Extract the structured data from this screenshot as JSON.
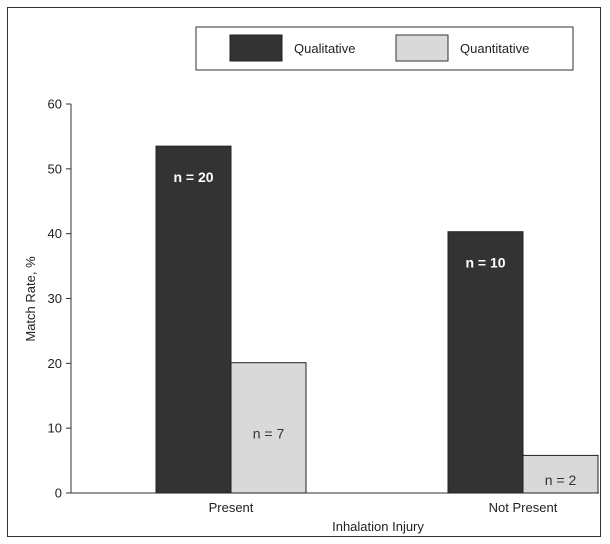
{
  "chart_data": {
    "type": "bar",
    "categories": [
      "Present",
      "Not Present"
    ],
    "series": [
      {
        "name": "Qualitative",
        "values": [
          53.5,
          40.3
        ],
        "labels": [
          "n = 20",
          "n = 10"
        ],
        "color": "#333333",
        "label_color": "#ffffff"
      },
      {
        "name": "Quantitative",
        "values": [
          20.1,
          5.8
        ],
        "labels": [
          "n = 7",
          "n = 2"
        ],
        "color": "#d9d9d9",
        "label_color": "#333333"
      }
    ],
    "xlabel": "Inhalation Injury",
    "ylabel": "Match Rate, %",
    "ylim": [
      0,
      60
    ],
    "yticks": [
      0,
      10,
      20,
      30,
      40,
      50,
      60
    ],
    "grid": false,
    "legend_position": "top-right"
  }
}
